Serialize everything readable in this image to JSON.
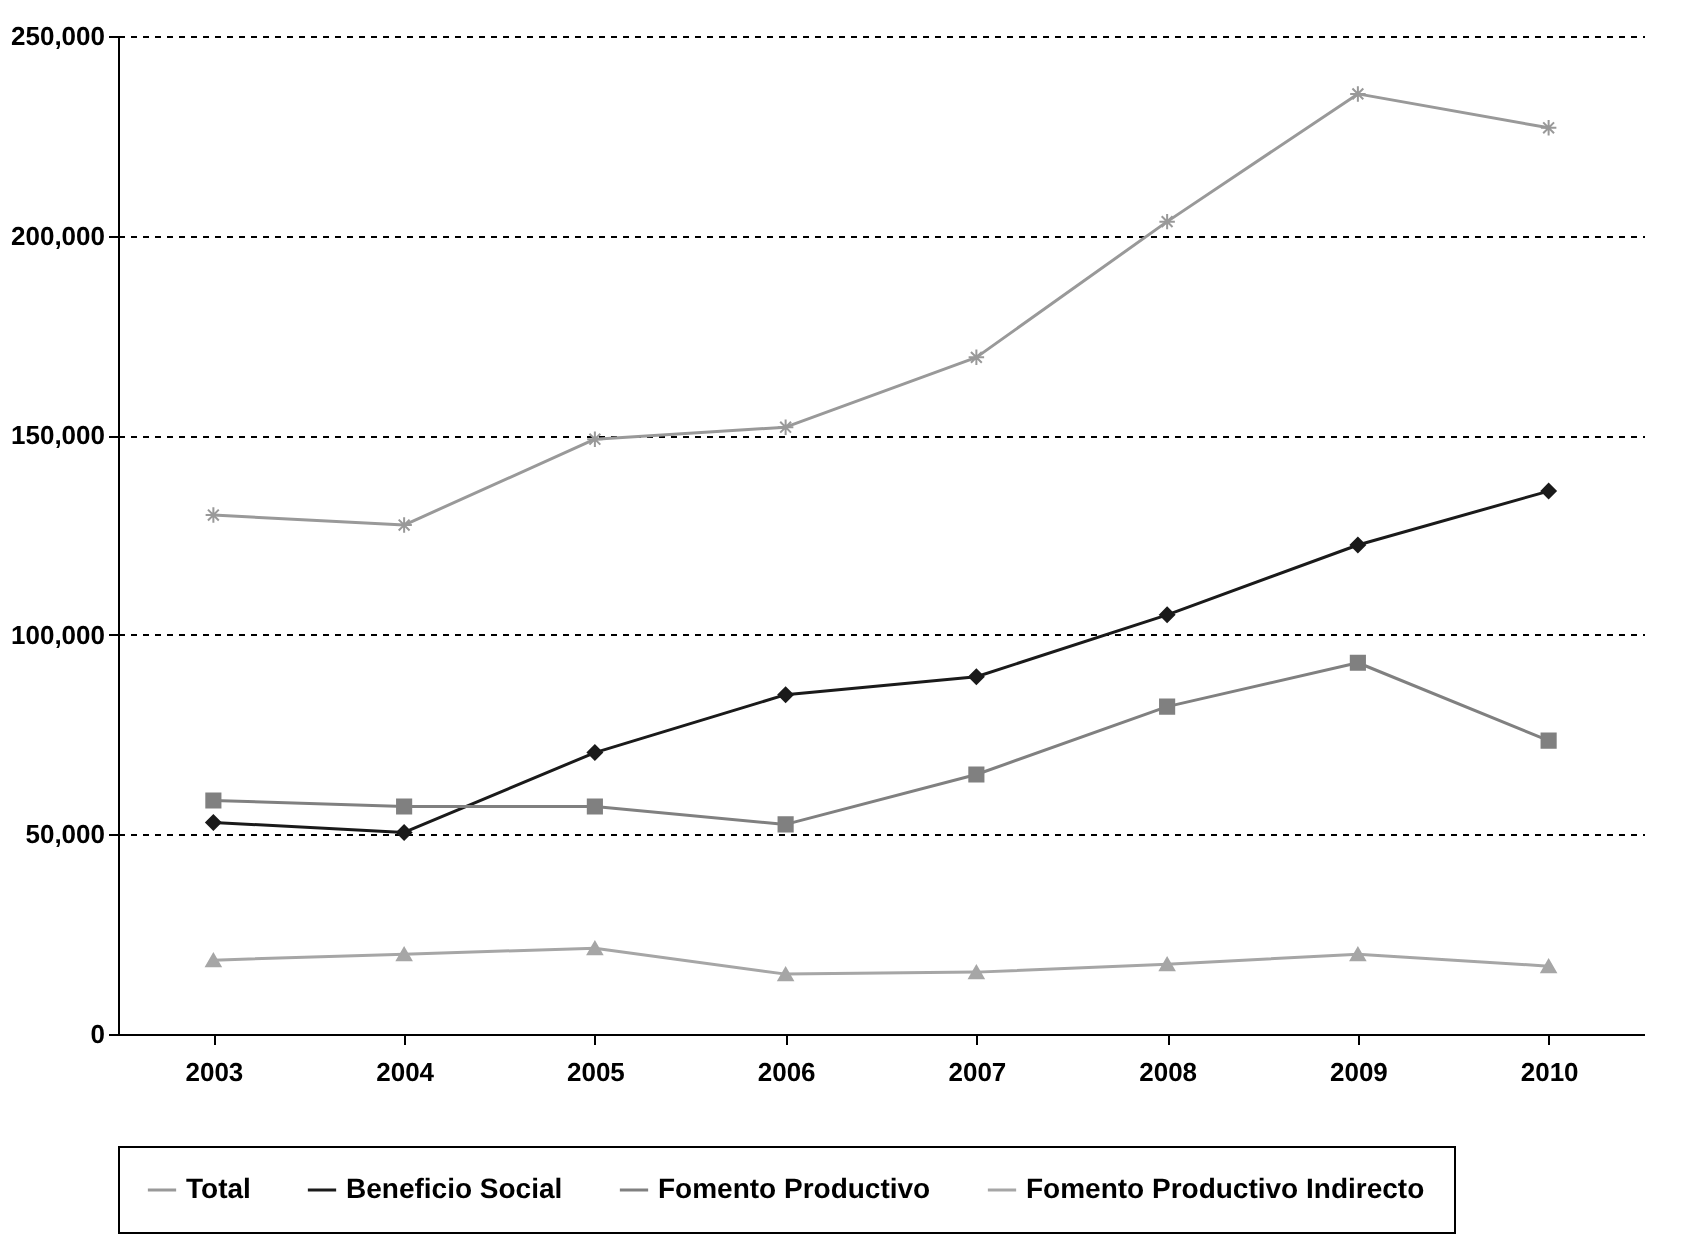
{
  "chart_data": {
    "type": "line",
    "categories": [
      "2003",
      "2004",
      "2005",
      "2006",
      "2007",
      "2008",
      "2009",
      "2010"
    ],
    "series": [
      {
        "name": "Total",
        "color": "#999999",
        "marker": "cross",
        "values": [
          130000,
          127500,
          149000,
          152000,
          169500,
          203500,
          235500,
          227000
        ]
      },
      {
        "name": "Beneficio Social",
        "color": "#1a1a1a",
        "marker": "diamond",
        "values": [
          53000,
          50500,
          70500,
          85000,
          89500,
          105000,
          122500,
          136000
        ]
      },
      {
        "name": "Fomento Productivo",
        "color": "#808080",
        "marker": "square",
        "values": [
          58500,
          57000,
          57000,
          52500,
          65000,
          82000,
          93000,
          73500
        ]
      },
      {
        "name": "Fomento Productivo Indirecto",
        "color": "#a6a6a6",
        "marker": "triangle",
        "values": [
          18500,
          20000,
          21500,
          15000,
          15500,
          17500,
          20000,
          17000
        ]
      }
    ],
    "ylim": [
      0,
      250000
    ],
    "yticks": [
      0,
      {
        "value": 50000,
        "label": "50,000"
      },
      {
        "value": 100000,
        "label": "100,000"
      },
      {
        "value": 150000,
        "label": "150,000"
      },
      {
        "value": 200000,
        "label": "200,000"
      },
      {
        "value": 250000,
        "label": "250,000"
      }
    ],
    "grid": "y",
    "legend": "bottom",
    "line_style": "solid"
  }
}
